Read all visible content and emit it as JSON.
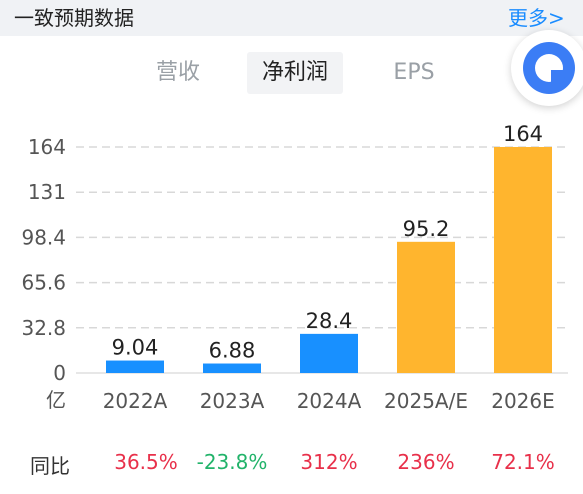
{
  "header": {
    "title": "一致预期数据",
    "more_label": "更多>"
  },
  "tabs": [
    {
      "label": "营收",
      "active": false
    },
    {
      "label": "净利润",
      "active": true
    },
    {
      "label": "EPS",
      "active": false
    }
  ],
  "fab": {
    "icon": "chat-assistant-icon"
  },
  "chart_data": {
    "type": "bar",
    "categories": [
      "2022A",
      "2023A",
      "2024A",
      "2025A/E",
      "2026E"
    ],
    "values": [
      9.04,
      6.88,
      28.4,
      95.2,
      164
    ],
    "value_labels": [
      "9.04",
      "6.88",
      "28.4",
      "95.2",
      "164"
    ],
    "bar_colors": [
      "#1890ff",
      "#1890ff",
      "#1890ff",
      "#ffb52e",
      "#ffb52e"
    ],
    "y_ticks": [
      "0",
      "32.8",
      "65.6",
      "98.4",
      "131",
      "164"
    ],
    "y_tick_values": [
      0,
      32.8,
      65.6,
      98.4,
      131.2,
      164
    ],
    "ylim": [
      0,
      164
    ],
    "unit_label": "亿",
    "grid": true
  },
  "yoy": {
    "label": "同比",
    "values": [
      {
        "text": "36.5%",
        "color": "#e8304a"
      },
      {
        "text": "-23.8%",
        "color": "#22b36a"
      },
      {
        "text": "312%",
        "color": "#e8304a"
      },
      {
        "text": "236%",
        "color": "#e8304a"
      },
      {
        "text": "72.1%",
        "color": "#e8304a"
      }
    ]
  }
}
